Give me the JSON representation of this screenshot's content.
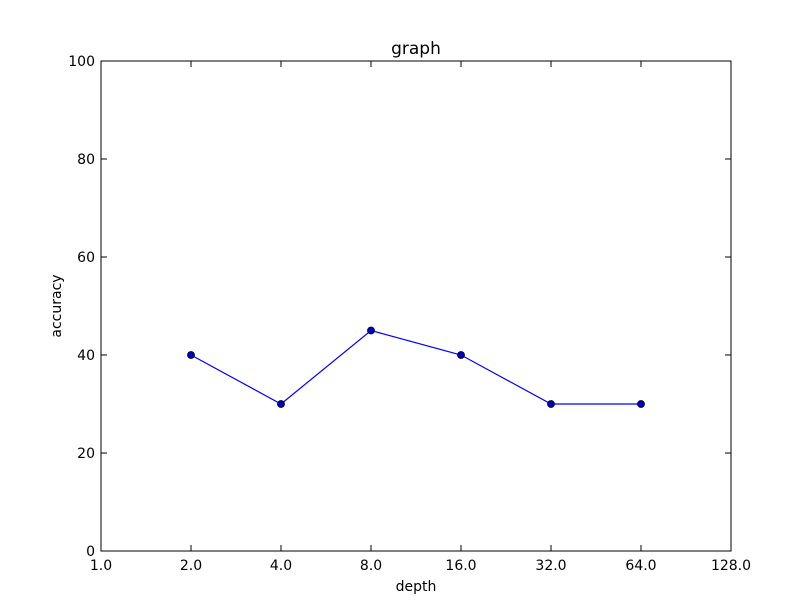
{
  "chart_data": {
    "type": "line",
    "title": "graph",
    "xlabel": "depth",
    "ylabel": "accuracy",
    "x_scale": "log2",
    "xlim": [
      1.0,
      128.0
    ],
    "ylim": [
      0,
      100
    ],
    "x_ticks": [
      "1.0",
      "2.0",
      "4.0",
      "8.0",
      "16.0",
      "32.0",
      "64.0",
      "128.0"
    ],
    "y_ticks": [
      "0",
      "20",
      "40",
      "60",
      "80",
      "100"
    ],
    "grid": false,
    "series": [
      {
        "color": "#0000ff",
        "marker": "circle",
        "x": [
          2,
          4,
          8,
          16,
          32,
          64
        ],
        "y": [
          40,
          30,
          45,
          40,
          30,
          30
        ]
      }
    ]
  }
}
